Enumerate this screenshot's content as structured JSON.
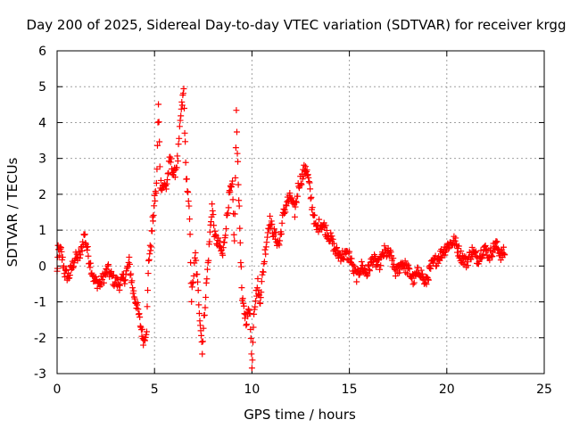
{
  "chart_data": {
    "type": "scatter",
    "title": "Day 200 of 2025, Sidereal Day-to-day VTEC variation (SDTVAR) for receiver krgg",
    "xlabel": "GPS time / hours",
    "ylabel": "SDTVAR / TECUs",
    "xlim": [
      0,
      25
    ],
    "ylim": [
      -3,
      6
    ],
    "xticks": [
      0,
      5,
      10,
      15,
      20,
      25
    ],
    "yticks": [
      -3,
      -2,
      -1,
      0,
      1,
      2,
      3,
      4,
      5,
      6
    ],
    "grid": true,
    "marker": "+",
    "series": [
      {
        "name": "SDTVAR",
        "color": "#ff0000",
        "data_gap": [
          14.6,
          15.0
        ],
        "trend": [
          [
            0.0,
            -0.2
          ],
          [
            0.05,
            0.4
          ],
          [
            0.2,
            0.4
          ],
          [
            0.4,
            -0.2
          ],
          [
            0.6,
            -0.3
          ],
          [
            0.9,
            0.2
          ],
          [
            1.2,
            0.3
          ],
          [
            1.4,
            0.9
          ],
          [
            1.6,
            0.3
          ],
          [
            1.9,
            -0.4
          ],
          [
            2.2,
            -0.5
          ],
          [
            2.6,
            -0.1
          ],
          [
            2.9,
            -0.4
          ],
          [
            3.2,
            -0.5
          ],
          [
            3.5,
            -0.3
          ],
          [
            3.7,
            0.1
          ],
          [
            3.9,
            -0.7
          ],
          [
            4.1,
            -1.1
          ],
          [
            4.3,
            -1.7
          ],
          [
            4.45,
            -2.1
          ],
          [
            4.6,
            -1.7
          ],
          [
            4.7,
            0.2
          ],
          [
            4.8,
            0.5
          ],
          [
            4.9,
            1.2
          ],
          [
            5.0,
            1.8
          ],
          [
            5.1,
            2.2
          ],
          [
            5.2,
            4.5
          ],
          [
            5.3,
            2.3
          ],
          [
            5.6,
            2.2
          ],
          [
            5.8,
            3.0
          ],
          [
            6.0,
            2.5
          ],
          [
            6.2,
            3.0
          ],
          [
            6.35,
            4.2
          ],
          [
            6.5,
            4.9
          ],
          [
            6.6,
            2.8
          ],
          [
            6.8,
            1.3
          ],
          [
            6.9,
            -0.9
          ],
          [
            7.1,
            0.3
          ],
          [
            7.3,
            -1.2
          ],
          [
            7.45,
            -2.3
          ],
          [
            7.6,
            -1.0
          ],
          [
            7.8,
            0.5
          ],
          [
            7.95,
            1.7
          ],
          [
            8.1,
            0.8
          ],
          [
            8.3,
            0.6
          ],
          [
            8.5,
            0.3
          ],
          [
            8.7,
            1.3
          ],
          [
            8.85,
            2.0
          ],
          [
            9.0,
            2.2
          ],
          [
            9.1,
            0.6
          ],
          [
            9.2,
            4.2
          ],
          [
            9.35,
            1.5
          ],
          [
            9.5,
            -1.0
          ],
          [
            9.7,
            -1.5
          ],
          [
            9.9,
            -1.2
          ],
          [
            10.0,
            -2.9
          ],
          [
            10.1,
            -1.2
          ],
          [
            10.3,
            -0.5
          ],
          [
            10.4,
            -1.0
          ],
          [
            10.5,
            -0.5
          ],
          [
            10.7,
            0.5
          ],
          [
            10.9,
            1.3
          ],
          [
            11.0,
            1.1
          ],
          [
            11.2,
            0.8
          ],
          [
            11.4,
            0.6
          ],
          [
            11.6,
            1.4
          ],
          [
            11.8,
            1.8
          ],
          [
            12.0,
            1.9
          ],
          [
            12.2,
            1.5
          ],
          [
            12.4,
            2.3
          ],
          [
            12.6,
            2.5
          ],
          [
            12.75,
            2.8
          ],
          [
            12.9,
            2.4
          ],
          [
            13.1,
            1.6
          ],
          [
            13.3,
            1.0
          ],
          [
            13.5,
            1.2
          ],
          [
            13.7,
            1.1
          ],
          [
            13.9,
            0.9
          ],
          [
            14.1,
            0.7
          ],
          [
            14.3,
            0.4
          ],
          [
            14.5,
            0.3
          ],
          [
            15.0,
            0.3
          ],
          [
            15.2,
            -0.1
          ],
          [
            15.4,
            -0.3
          ],
          [
            15.6,
            0.0
          ],
          [
            15.9,
            -0.2
          ],
          [
            16.2,
            0.2
          ],
          [
            16.5,
            0.0
          ],
          [
            16.8,
            0.4
          ],
          [
            17.1,
            0.3
          ],
          [
            17.4,
            -0.2
          ],
          [
            17.7,
            0.1
          ],
          [
            18.0,
            -0.1
          ],
          [
            18.3,
            -0.4
          ],
          [
            18.6,
            -0.1
          ],
          [
            18.9,
            -0.5
          ],
          [
            19.2,
            0.0
          ],
          [
            19.5,
            0.2
          ],
          [
            19.8,
            0.4
          ],
          [
            20.1,
            0.6
          ],
          [
            20.4,
            0.7
          ],
          [
            20.7,
            0.3
          ],
          [
            21.0,
            0.1
          ],
          [
            21.3,
            0.4
          ],
          [
            21.6,
            0.2
          ],
          [
            21.9,
            0.5
          ],
          [
            22.2,
            0.3
          ],
          [
            22.5,
            0.6
          ],
          [
            22.8,
            0.3
          ],
          [
            23.0,
            0.4
          ]
        ]
      }
    ]
  }
}
